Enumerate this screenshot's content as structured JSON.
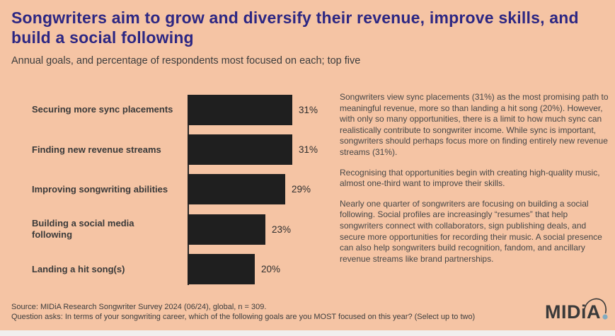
{
  "page": {
    "title": "Songwriters aim to grow and diversify their revenue, improve skills, and build a social following",
    "subtitle": "Annual goals, and percentage of respondents most focused on each; top five"
  },
  "chart_data": {
    "type": "bar",
    "orientation": "horizontal",
    "title": "Annual goals, and percentage of respondents most focused on each; top five",
    "categories": [
      "Securing more sync placements",
      "Finding new revenue streams",
      "Improving songwriting abilities",
      "Building a social media following",
      "Landing a hit song(s)"
    ],
    "values": [
      31,
      31,
      29,
      23,
      20
    ],
    "value_labels": [
      "31%",
      "31%",
      "29%",
      "23%",
      "20%"
    ],
    "xlim": [
      0,
      31
    ],
    "grid": false,
    "legend": false,
    "bar_color": "#1f1f1f"
  },
  "commentary": {
    "paragraphs": [
      "Songwriters view sync placements (31%) as the most promising path to meaningful revenue, more so than landing a hit song (20%). However, with only so many opportunities, there is a limit to how much sync can realistically contribute to songwriter income. While sync is important, songwriters should perhaps focus more on finding entirely new revenue streams (31%).",
      "Recognising that opportunities begin with creating high-quality music, almost one-third want to improve their skills.",
      "Nearly one quarter of songwriters are focusing on building a social following. Social profiles are increasingly “resumes” that help songwriters connect with collaborators, sign publishing deals, and secure more opportunities for recording their music. A social presence can also help songwriters build recognition, fandom, and ancillary revenue streams like brand partnerships."
    ]
  },
  "footer": {
    "source_line": "Source: MIDiA Research Songwriter Survey 2024 (06/24), global, n = 309.",
    "question_line": "Question asks: In terms of your songwriting career, which of the following goals are you MOST focused on this year? (Select up to two)"
  },
  "logo": {
    "text": "MIDiA"
  },
  "colors": {
    "background": "#f5c4a4",
    "title": "#2d2783",
    "bar": "#1f1f1f",
    "body_text": "#474747",
    "logo_dot": "#82abc0"
  }
}
